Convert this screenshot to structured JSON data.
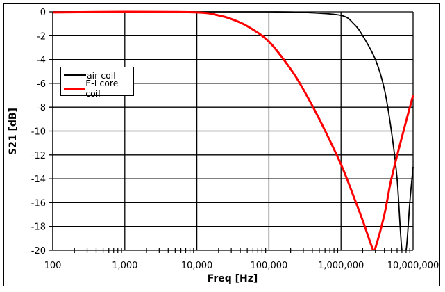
{
  "chart_data": {
    "type": "line",
    "title": "",
    "xlabel": "Freq [Hz]",
    "ylabel": "S21 [dB]",
    "xscale": "log",
    "xlim": [
      100,
      10000000
    ],
    "ylim": [
      -20,
      0
    ],
    "grid": true,
    "legend_position": "upper-left (inside)",
    "x_tick_labels": [
      "100",
      "1,000",
      "10,000",
      "100,000",
      "1,000,000",
      "10,000,000"
    ],
    "y_tick_labels": [
      "0",
      "-2",
      "-4",
      "-6",
      "-8",
      "-10",
      "-12",
      "-14",
      "-16",
      "-18",
      "-20"
    ],
    "series": [
      {
        "name": "air coil",
        "color": "#000000",
        "x": [
          100,
          1000,
          10000,
          100000,
          300000,
          1000000,
          1500000,
          2000000,
          3000000,
          4000000,
          5000000,
          6000000,
          7000000,
          8000000,
          9000000,
          10000000
        ],
        "y": [
          0,
          0,
          0,
          0,
          -0.05,
          -0.3,
          -1.0,
          -2.0,
          -4.0,
          -6.5,
          -10.0,
          -14.0,
          -20.0,
          -20.0,
          -16.0,
          -13.0
        ]
      },
      {
        "name": "E-I core coil",
        "color": "#ff0000",
        "x": [
          100,
          1000,
          10000,
          20000,
          30000,
          50000,
          100000,
          200000,
          300000,
          500000,
          1000000,
          1500000,
          2000000,
          2800000,
          3000000,
          4000000,
          5000000,
          7000000,
          10000000
        ],
        "y": [
          -0.05,
          0,
          -0.05,
          -0.3,
          -0.6,
          -1.2,
          -2.5,
          -4.8,
          -6.5,
          -9.0,
          -12.8,
          -15.5,
          -17.5,
          -20.0,
          -19.8,
          -17.0,
          -14.0,
          -10.5,
          -7.0
        ]
      }
    ]
  },
  "legend": {
    "items": [
      {
        "label": "air coil",
        "color": "#000000"
      },
      {
        "label": "E-I core coil",
        "color": "#ff0000"
      }
    ]
  }
}
